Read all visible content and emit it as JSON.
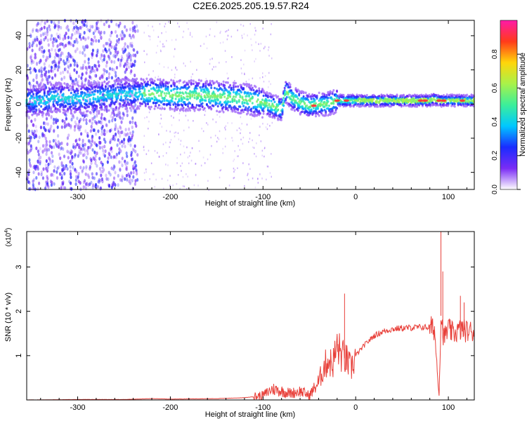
{
  "title": "C2E6.2025.205.19.57.R24",
  "colors": {
    "signal": "#e8403a",
    "frame": "#000000"
  },
  "chart_data": [
    {
      "type": "heatmap",
      "xlabel": "Height of straight line (km)",
      "ylabel": "Frequency (Hz)",
      "xlim": [
        -355,
        128
      ],
      "ylim": [
        -50,
        49
      ],
      "xticks": [
        -300,
        -200,
        -100,
        0,
        100
      ],
      "yticks": [
        -40,
        -20,
        0,
        20,
        40
      ],
      "colorbar": {
        "label": "Normalized spectral amplitude",
        "range": [
          0,
          1
        ],
        "ticks": [
          0.0,
          0.2,
          0.4,
          0.6,
          0.8
        ],
        "tick_labels": [
          "0.0",
          "0.2",
          "0.4",
          "0.6",
          "0.8"
        ],
        "colormap": [
          "#ffffff",
          "#7a2cf5",
          "#1a2cff",
          "#00c8ff",
          "#3cef9a",
          "#a8f24a",
          "#ffd60a",
          "#ff3b1a",
          "#ff1aa8"
        ]
      },
      "ridge": {
        "x": [
          -330,
          -300,
          -270,
          -240,
          -220,
          -200,
          -180,
          -160,
          -140,
          -120,
          -100,
          -90,
          -80,
          -75,
          -70,
          -60,
          -50,
          -40,
          -30,
          -20,
          0,
          20,
          50,
          80,
          85,
          90,
          100,
          110,
          120,
          128
        ],
        "y": [
          4,
          3,
          5,
          6,
          6,
          5,
          5,
          5,
          4,
          3,
          1,
          -1,
          -3,
          8,
          4,
          1,
          -1,
          0,
          0,
          2,
          2,
          2,
          2,
          2,
          3,
          2,
          2,
          2,
          2,
          2
        ]
      },
      "grid": false
    },
    {
      "type": "line",
      "xlabel": "Height of straight line (km)",
      "ylabel": "SNR (10 * v/v)",
      "multiplier": "(x10^4)",
      "xlim": [
        -355,
        128
      ],
      "ylim": [
        0,
        3.8
      ],
      "xticks": [
        -300,
        -200,
        -100,
        0,
        100
      ],
      "yticks": [
        1,
        2,
        3
      ],
      "series": [
        {
          "color": "#e8403a",
          "x": [
            -355,
            -300,
            -250,
            -220,
            -200,
            -150,
            -120,
            -100,
            -90,
            -80,
            -70,
            -60,
            -50,
            -40,
            -35,
            -30,
            -25,
            -20,
            -15,
            -10,
            -5,
            0,
            10,
            20,
            30,
            40,
            50,
            60,
            70,
            80,
            85,
            90,
            92,
            95,
            100,
            105,
            110,
            115,
            120,
            128
          ],
          "y": [
            0.0,
            0.01,
            0.01,
            0.03,
            0.02,
            0.03,
            0.05,
            0.1,
            0.25,
            0.2,
            0.15,
            0.2,
            0.1,
            0.4,
            0.7,
            0.9,
            0.8,
            1.2,
            1.0,
            0.9,
            0.7,
            1.0,
            1.25,
            1.45,
            1.55,
            1.6,
            1.62,
            1.63,
            1.64,
            1.64,
            1.6,
            0.1,
            1.9,
            1.4,
            1.6,
            1.5,
            1.55,
            1.6,
            1.55,
            1.55
          ]
        }
      ],
      "spikes": [
        {
          "x": -12,
          "y": 2.4
        },
        {
          "x": 92,
          "y": 3.9
        },
        {
          "x": 94,
          "y": 2.9
        },
        {
          "x": 113,
          "y": 2.35
        },
        {
          "x": 117,
          "y": 2.2
        }
      ],
      "grid": false
    }
  ]
}
